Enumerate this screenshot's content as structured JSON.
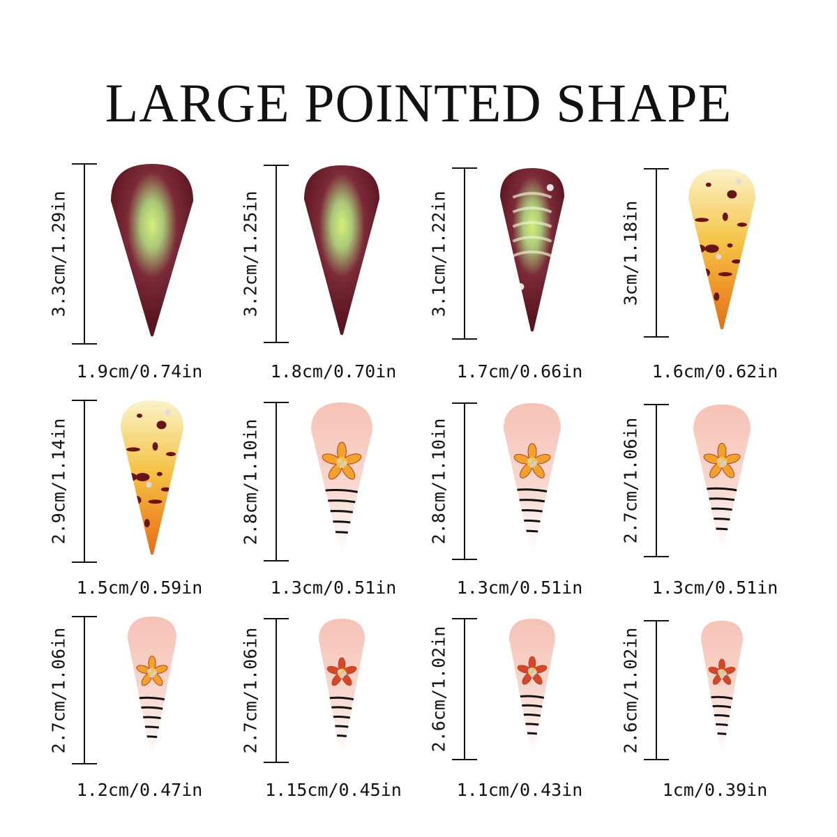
{
  "title": "LARGE POINTED SHAPE",
  "nails": [
    {
      "length": "3.3cm/1.29in",
      "width": "1.9cm/0.74in",
      "style": "cat-eye"
    },
    {
      "length": "3.2cm/1.25in",
      "width": "1.8cm/0.70in",
      "style": "cat-eye"
    },
    {
      "length": "3.1cm/1.22in",
      "width": "1.7cm/0.66in",
      "style": "cat-eye-swirl"
    },
    {
      "length": "3cm/1.18in",
      "width": "1.6cm/0.62in",
      "style": "leopard"
    },
    {
      "length": "2.9cm/1.14in",
      "width": "1.5cm/0.59in",
      "style": "leopard"
    },
    {
      "length": "2.8cm/1.10in",
      "width": "1.3cm/0.51in",
      "style": "lily-zebra"
    },
    {
      "length": "2.8cm/1.10in",
      "width": "1.3cm/0.51in",
      "style": "lily-zebra"
    },
    {
      "length": "2.7cm/1.06in",
      "width": "1.3cm/0.51in",
      "style": "lily-zebra"
    },
    {
      "length": "2.7cm/1.06in",
      "width": "1.2cm/0.47in",
      "style": "lily-zebra"
    },
    {
      "length": "2.7cm/1.06in",
      "width": "1.15cm/0.45in",
      "style": "red-lily-zebra"
    },
    {
      "length": "2.6cm/1.02in",
      "width": "1.1cm/0.43in",
      "style": "red-lily-zebra"
    },
    {
      "length": "2.6cm/1.02in",
      "width": "1cm/0.39in",
      "style": "red-lily-zebra"
    }
  ]
}
